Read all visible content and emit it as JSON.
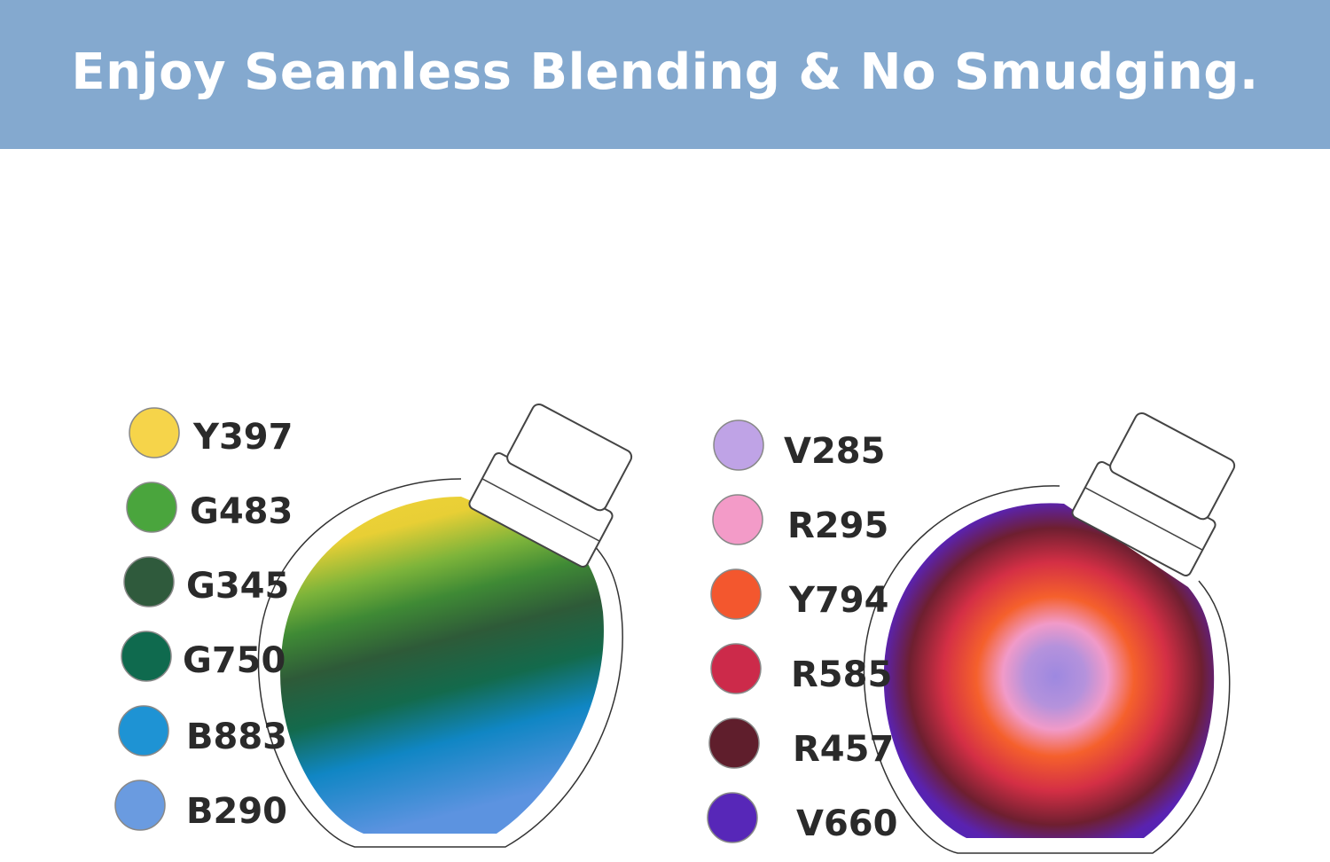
{
  "banner": {
    "title": "Enjoy Seamless Blending & No Smudging.",
    "background": "#84a9cf"
  },
  "left_palette": [
    {
      "code": "Y397",
      "color": "#f6d44a"
    },
    {
      "code": "G483",
      "color": "#4aa53d"
    },
    {
      "code": "G345",
      "color": "#2f5a3c"
    },
    {
      "code": "G750",
      "color": "#0f6a4e"
    },
    {
      "code": "B883",
      "color": "#1e93d4"
    },
    {
      "code": "B290",
      "color": "#6a9be0"
    }
  ],
  "right_palette": [
    {
      "code": "V285",
      "color": "#bfa3e6"
    },
    {
      "code": "R295",
      "color": "#f39bc8"
    },
    {
      "code": "Y794",
      "color": "#f3572e"
    },
    {
      "code": "R585",
      "color": "#cc2a4a"
    },
    {
      "code": "R457",
      "color": "#5f1e2c"
    },
    {
      "code": "V660",
      "color": "#5727b8"
    }
  ]
}
